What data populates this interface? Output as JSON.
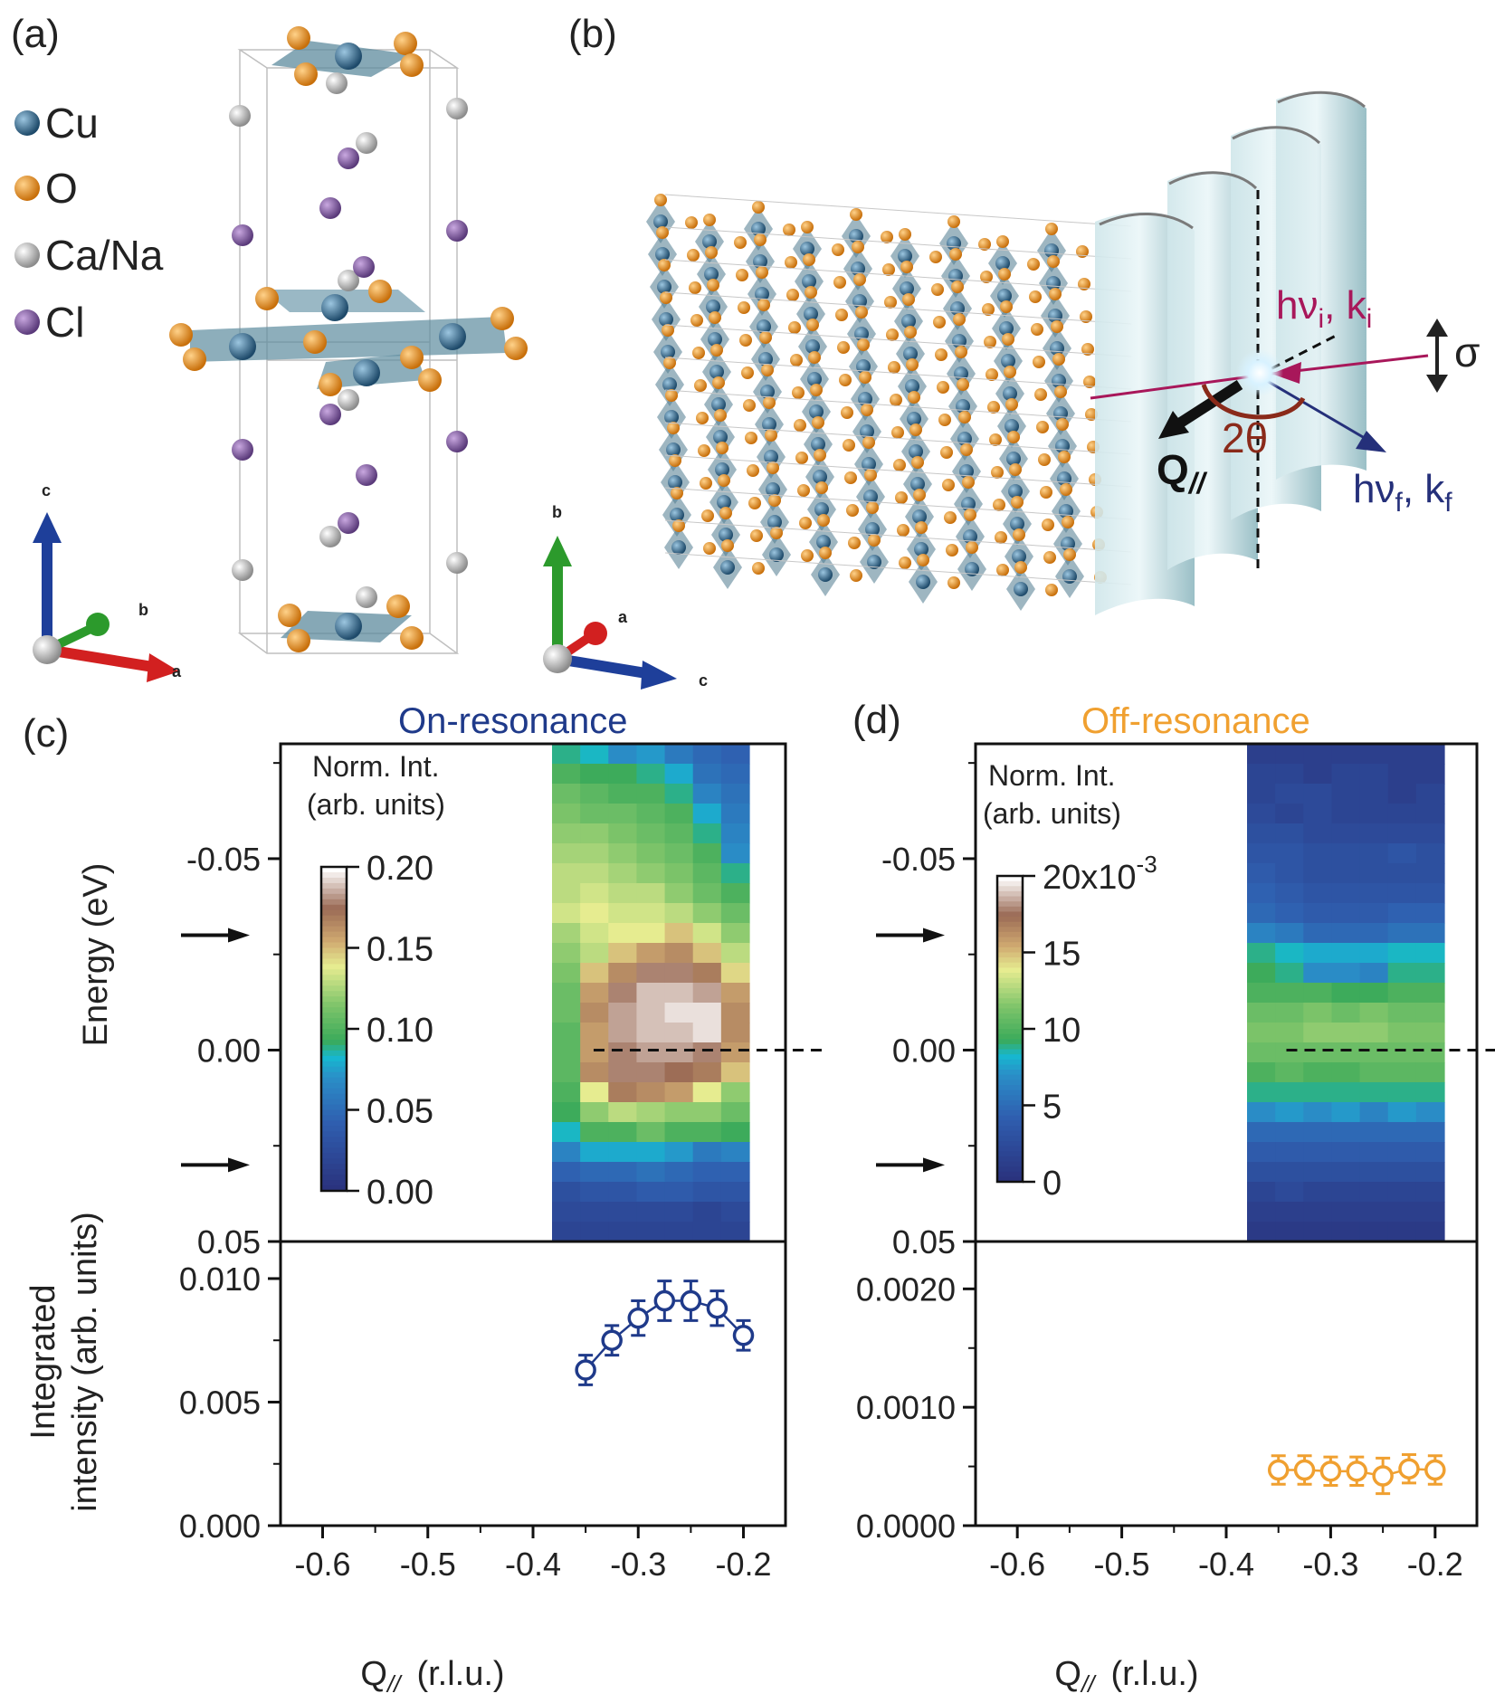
{
  "panels": {
    "a": "(a)",
    "b": "(b)",
    "c": "(c)",
    "d": "(d)"
  },
  "legend": {
    "items": [
      {
        "label": "Cu",
        "color": "#2f5f82"
      },
      {
        "label": "O",
        "color": "#e8921f"
      },
      {
        "label": "Ca/Na",
        "color": "#bdbdbd"
      },
      {
        "label": "Cl",
        "color": "#7e5a9b"
      }
    ]
  },
  "axes_a": {
    "c": "c",
    "b": "b",
    "a": "a"
  },
  "axes_b": {
    "b": "b",
    "a": "a",
    "c": "c"
  },
  "schematic": {
    "incident": "hν",
    "incident_sub": "i",
    "incident_k": ", k",
    "incident_ksub": "i",
    "scattered": "hν",
    "scattered_sub": "f",
    "scattered_k": ", k",
    "scattered_ksub": "f",
    "polarization": "σ",
    "angle": "2θ",
    "q_label": "Q",
    "q_sub": "//"
  },
  "colors": {
    "on_resonance": "#1f3a8a",
    "off_resonance": "#f0a030",
    "incident_beam": "#a8175a",
    "scattered_beam": "#25307a",
    "angle": "#8a2a1a"
  },
  "chart_data": [
    {
      "type": "heatmap",
      "panel": "c",
      "title": "On-resonance",
      "ylabel": "Energy (eV)",
      "yticks": [
        "-0.05",
        "0.00",
        "0.05"
      ],
      "ylim": [
        0.05,
        -0.08
      ],
      "colorbar": {
        "title_line1": "Norm. Int.",
        "title_line2": "(arb. units)",
        "ticks": [
          "0.20",
          "0.15",
          "0.10",
          "0.05",
          "0.00"
        ],
        "range": [
          0.0,
          0.2
        ]
      },
      "x": [
        -0.35,
        -0.325,
        -0.3,
        -0.275,
        -0.25,
        -0.225,
        -0.2
      ],
      "energy_rows": [
        -0.075,
        -0.07,
        -0.065,
        -0.06,
        -0.055,
        -0.05,
        -0.045,
        -0.04,
        -0.035,
        -0.03,
        -0.025,
        -0.02,
        -0.015,
        -0.01,
        -0.005,
        0.0,
        0.005,
        0.01,
        0.015,
        0.02,
        0.025,
        0.03,
        0.035,
        0.04,
        0.045
      ],
      "values": [
        [
          0.09,
          0.085,
          0.07,
          0.075,
          0.06,
          0.05,
          0.045
        ],
        [
          0.1,
          0.095,
          0.095,
          0.09,
          0.08,
          0.055,
          0.05
        ],
        [
          0.11,
          0.105,
          0.1,
          0.1,
          0.09,
          0.065,
          0.055
        ],
        [
          0.115,
          0.11,
          0.11,
          0.105,
          0.1,
          0.08,
          0.06
        ],
        [
          0.12,
          0.12,
          0.115,
          0.11,
          0.105,
          0.09,
          0.065
        ],
        [
          0.125,
          0.125,
          0.12,
          0.115,
          0.11,
          0.1,
          0.07
        ],
        [
          0.13,
          0.13,
          0.125,
          0.12,
          0.115,
          0.105,
          0.09
        ],
        [
          0.13,
          0.135,
          0.13,
          0.13,
          0.12,
          0.11,
          0.1
        ],
        [
          0.135,
          0.14,
          0.135,
          0.135,
          0.13,
          0.12,
          0.11
        ],
        [
          0.125,
          0.135,
          0.14,
          0.14,
          0.15,
          0.135,
          0.12
        ],
        [
          0.12,
          0.13,
          0.15,
          0.16,
          0.165,
          0.15,
          0.13
        ],
        [
          0.115,
          0.15,
          0.165,
          0.18,
          0.18,
          0.17,
          0.145
        ],
        [
          0.11,
          0.16,
          0.18,
          0.19,
          0.19,
          0.185,
          0.16
        ],
        [
          0.11,
          0.165,
          0.185,
          0.19,
          0.195,
          0.195,
          0.165
        ],
        [
          0.105,
          0.16,
          0.185,
          0.19,
          0.19,
          0.195,
          0.165
        ],
        [
          0.105,
          0.16,
          0.18,
          0.185,
          0.185,
          0.18,
          0.16
        ],
        [
          0.105,
          0.165,
          0.18,
          0.18,
          0.175,
          0.17,
          0.15
        ],
        [
          0.1,
          0.14,
          0.17,
          0.165,
          0.16,
          0.14,
          0.12
        ],
        [
          0.095,
          0.12,
          0.13,
          0.125,
          0.12,
          0.12,
          0.11
        ],
        [
          0.085,
          0.1,
          0.1,
          0.11,
          0.1,
          0.1,
          0.095
        ],
        [
          0.065,
          0.08,
          0.08,
          0.08,
          0.075,
          0.06,
          0.065
        ],
        [
          0.045,
          0.05,
          0.05,
          0.055,
          0.05,
          0.045,
          0.045
        ],
        [
          0.03,
          0.035,
          0.035,
          0.04,
          0.04,
          0.035,
          0.035
        ],
        [
          0.025,
          0.025,
          0.025,
          0.025,
          0.025,
          0.02,
          0.025
        ],
        [
          0.02,
          0.02,
          0.02,
          0.02,
          0.02,
          0.02,
          0.02
        ]
      ]
    },
    {
      "type": "heatmap",
      "panel": "d",
      "title": "Off-resonance",
      "ylabel": "",
      "yticks": [
        "-0.05",
        "0.00",
        "0.05"
      ],
      "ylim": [
        0.05,
        -0.08
      ],
      "colorbar": {
        "title_line1": "Norm. Int.",
        "title_line2": "(arb. units)",
        "ticks": [
          "20x10",
          "15",
          "10",
          "5",
          "0"
        ],
        "exponent": "-3",
        "range": [
          0,
          20
        ]
      },
      "x": [
        -0.35,
        -0.325,
        -0.3,
        -0.275,
        -0.25,
        -0.225,
        -0.2
      ],
      "energy_rows": [
        -0.075,
        -0.07,
        -0.065,
        -0.06,
        -0.055,
        -0.05,
        -0.045,
        -0.04,
        -0.035,
        -0.03,
        -0.025,
        -0.02,
        -0.015,
        -0.01,
        -0.005,
        0.0,
        0.005,
        0.01,
        0.015,
        0.02,
        0.025,
        0.03,
        0.035,
        0.04,
        0.045
      ],
      "values": [
        [
          1.5,
          1.5,
          1.5,
          1.5,
          1.5,
          1.5,
          1.5
        ],
        [
          2,
          2,
          1.5,
          2,
          2,
          1.5,
          1.5
        ],
        [
          2,
          2.5,
          2.5,
          2,
          2,
          1.5,
          2
        ],
        [
          2.5,
          2,
          2.5,
          2,
          2,
          2,
          2
        ],
        [
          3,
          3,
          2.5,
          2.5,
          2.5,
          2.5,
          2.5
        ],
        [
          3.5,
          3.5,
          3,
          3,
          3,
          3.5,
          3
        ],
        [
          4,
          3.5,
          3,
          3,
          3,
          3,
          3
        ],
        [
          4.5,
          4,
          3.5,
          3.5,
          3.5,
          3.5,
          3.5
        ],
        [
          5,
          4.5,
          4,
          4,
          4,
          4.5,
          4.5
        ],
        [
          6.5,
          6,
          5,
          5,
          5,
          5.5,
          5.5
        ],
        [
          9,
          8.5,
          8,
          8,
          8,
          8.5,
          8.5
        ],
        [
          9.5,
          9,
          7,
          7,
          6.5,
          9,
          9
        ],
        [
          10,
          10,
          10,
          9.5,
          9.5,
          10,
          10
        ],
        [
          11,
          11,
          11.5,
          11,
          11.5,
          11,
          11
        ],
        [
          11.5,
          11.5,
          12,
          12,
          12,
          11.5,
          11.5
        ],
        [
          11,
          11,
          11,
          11,
          11,
          11,
          11
        ],
        [
          10,
          10.5,
          10,
          10,
          10.5,
          10.5,
          10.5
        ],
        [
          9,
          9,
          9,
          9,
          9,
          9,
          9
        ],
        [
          7,
          7.5,
          7,
          7.5,
          6.5,
          7.5,
          7
        ],
        [
          5,
          5,
          5,
          5,
          5,
          5,
          5
        ],
        [
          4,
          4,
          4,
          4,
          4,
          4,
          4
        ],
        [
          3,
          3,
          3,
          3,
          3,
          3,
          3
        ],
        [
          2,
          2.5,
          2,
          2,
          2,
          2,
          2
        ],
        [
          1.5,
          1.5,
          1.5,
          1.5,
          1.5,
          1.5,
          1.5
        ],
        [
          1,
          1,
          1,
          1,
          1,
          1,
          1
        ]
      ]
    },
    {
      "type": "scatter",
      "panel": "c",
      "ylabel_line1": "Integrated",
      "ylabel_line2": "intensity (arb. units)",
      "xlabel": "Q",
      "xlabel_sub": "//",
      "xlabel_unit": "(r.l.u.)",
      "xticks": [
        "-0.6",
        "-0.5",
        "-0.4",
        "-0.3",
        "-0.2"
      ],
      "yticks": [
        "0.010",
        "0.005",
        "0.000"
      ],
      "xlim": [
        -0.64,
        -0.16
      ],
      "ylim": [
        0.0,
        0.0115
      ],
      "x": [
        -0.35,
        -0.325,
        -0.3,
        -0.275,
        -0.25,
        -0.225,
        -0.2
      ],
      "y": [
        0.0063,
        0.0075,
        0.0084,
        0.0091,
        0.0091,
        0.0088,
        0.0077
      ],
      "yerr": [
        0.0006,
        0.0006,
        0.0007,
        0.0008,
        0.0008,
        0.0007,
        0.0006
      ],
      "color": "#1f3a8a"
    },
    {
      "type": "scatter",
      "panel": "d",
      "xlabel": "Q",
      "xlabel_sub": "//",
      "xlabel_unit": "(r.l.u.)",
      "xticks": [
        "-0.6",
        "-0.5",
        "-0.4",
        "-0.3",
        "-0.2"
      ],
      "yticks": [
        "0.0020",
        "0.0010",
        "0.0000"
      ],
      "xlim": [
        -0.64,
        -0.16
      ],
      "ylim": [
        0.0,
        0.0024
      ],
      "x": [
        -0.35,
        -0.325,
        -0.3,
        -0.275,
        -0.25,
        -0.225,
        -0.2
      ],
      "y": [
        0.00047,
        0.00047,
        0.00046,
        0.00046,
        0.00042,
        0.00048,
        0.00047
      ],
      "yerr": [
        0.00012,
        0.00012,
        0.00012,
        0.00012,
        0.00015,
        0.00012,
        0.00012
      ],
      "color": "#f0a030"
    }
  ]
}
